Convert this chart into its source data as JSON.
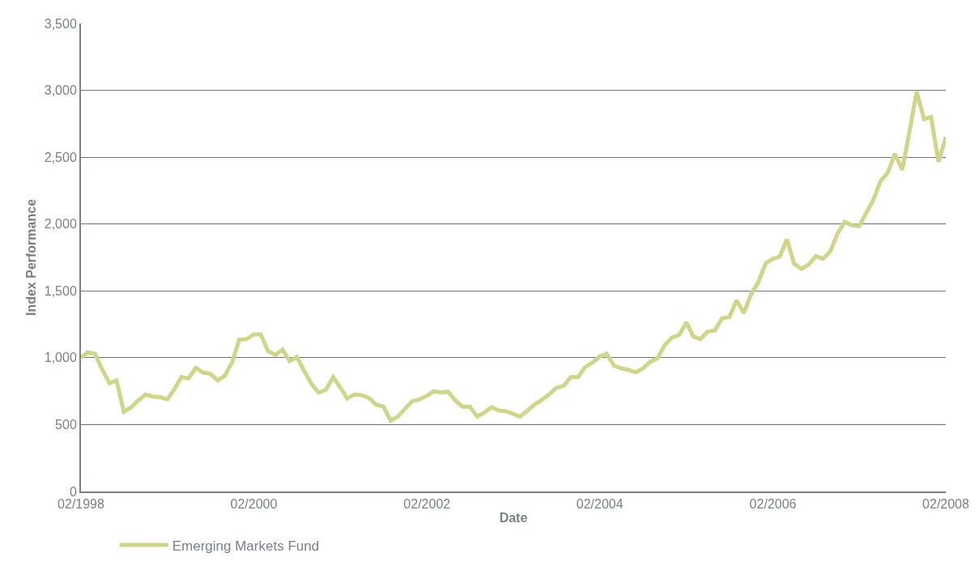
{
  "chart_data": {
    "type": "line",
    "xlabel": "Date",
    "ylabel": "Index Performance",
    "x": [
      "1998-02",
      "1998-03",
      "1998-04",
      "1998-05",
      "1998-06",
      "1998-07",
      "1998-08",
      "1998-09",
      "1998-10",
      "1998-11",
      "1998-12",
      "1999-01",
      "1999-02",
      "1999-03",
      "1999-04",
      "1999-05",
      "1999-06",
      "1999-07",
      "1999-08",
      "1999-09",
      "1999-10",
      "1999-11",
      "1999-12",
      "2000-01",
      "2000-02",
      "2000-03",
      "2000-04",
      "2000-05",
      "2000-06",
      "2000-07",
      "2000-08",
      "2000-09",
      "2000-10",
      "2000-11",
      "2000-12",
      "2001-01",
      "2001-02",
      "2001-03",
      "2001-04",
      "2001-05",
      "2001-06",
      "2001-07",
      "2001-08",
      "2001-09",
      "2001-10",
      "2001-11",
      "2001-12",
      "2002-01",
      "2002-02",
      "2002-03",
      "2002-04",
      "2002-05",
      "2002-06",
      "2002-07",
      "2002-08",
      "2002-09",
      "2002-10",
      "2002-11",
      "2002-12",
      "2003-01",
      "2003-02",
      "2003-03",
      "2003-04",
      "2003-05",
      "2003-06",
      "2003-07",
      "2003-08",
      "2003-09",
      "2003-10",
      "2003-11",
      "2003-12",
      "2004-01",
      "2004-02",
      "2004-03",
      "2004-04",
      "2004-05",
      "2004-06",
      "2004-07",
      "2004-08",
      "2004-09",
      "2004-10",
      "2004-11",
      "2004-12",
      "2005-01",
      "2005-02",
      "2005-03",
      "2005-04",
      "2005-05",
      "2005-06",
      "2005-07",
      "2005-08",
      "2005-09",
      "2005-10",
      "2005-11",
      "2005-12",
      "2006-01",
      "2006-02",
      "2006-03",
      "2006-04",
      "2006-05",
      "2006-06",
      "2006-07",
      "2006-08",
      "2006-09",
      "2006-10",
      "2006-11",
      "2006-12",
      "2007-01",
      "2007-02",
      "2007-03",
      "2007-04",
      "2007-05",
      "2007-06",
      "2007-07",
      "2007-08",
      "2007-09",
      "2007-10",
      "2007-11",
      "2007-12",
      "2008-01",
      "2008-02"
    ],
    "series": [
      {
        "name": "Emerging Markets Fund",
        "color": "#d0d58c",
        "values": [
          1000,
          1040,
          1030,
          915,
          810,
          830,
          595,
          630,
          680,
          725,
          710,
          705,
          690,
          760,
          855,
          845,
          925,
          890,
          880,
          830,
          865,
          965,
          1135,
          1140,
          1175,
          1175,
          1050,
          1020,
          1060,
          975,
          1005,
          900,
          805,
          740,
          760,
          855,
          775,
          695,
          725,
          720,
          700,
          650,
          635,
          530,
          560,
          620,
          675,
          690,
          715,
          750,
          740,
          745,
          680,
          635,
          635,
          560,
          590,
          630,
          605,
          600,
          580,
          560,
          605,
          650,
          685,
          725,
          775,
          790,
          855,
          855,
          930,
          965,
          1010,
          1030,
          940,
          920,
          910,
          890,
          920,
          970,
          995,
          1095,
          1150,
          1170,
          1265,
          1160,
          1140,
          1195,
          1205,
          1295,
          1305,
          1430,
          1335,
          1475,
          1565,
          1705,
          1740,
          1755,
          1885,
          1705,
          1665,
          1695,
          1760,
          1740,
          1795,
          1930,
          2015,
          1990,
          1985,
          2080,
          2180,
          2320,
          2385,
          2525,
          2405,
          2695,
          2990,
          2785,
          2800,
          2465,
          2650
        ]
      }
    ],
    "xlim": [
      "1998-02",
      "2008-02"
    ],
    "xticks": [
      {
        "value": "1998-02",
        "label": "02/1998"
      },
      {
        "value": "2000-02",
        "label": "02/2000"
      },
      {
        "value": "2002-02",
        "label": "02/2002"
      },
      {
        "value": "2004-02",
        "label": "02/2004"
      },
      {
        "value": "2006-02",
        "label": "02/2006"
      },
      {
        "value": "2008-02",
        "label": "02/2008"
      }
    ],
    "ylim": [
      0,
      3500
    ],
    "yticks": [
      {
        "value": 0,
        "label": "0"
      },
      {
        "value": 500,
        "label": "500"
      },
      {
        "value": 1000,
        "label": "1,000"
      },
      {
        "value": 1500,
        "label": "1,500"
      },
      {
        "value": 2000,
        "label": "2,000"
      },
      {
        "value": 2500,
        "label": "2,500"
      },
      {
        "value": 3000,
        "label": "3,000"
      },
      {
        "value": 3500,
        "label": "3,500"
      }
    ],
    "grid": "y",
    "legend": "bottom left",
    "marker": "none",
    "line_style": "solid"
  }
}
